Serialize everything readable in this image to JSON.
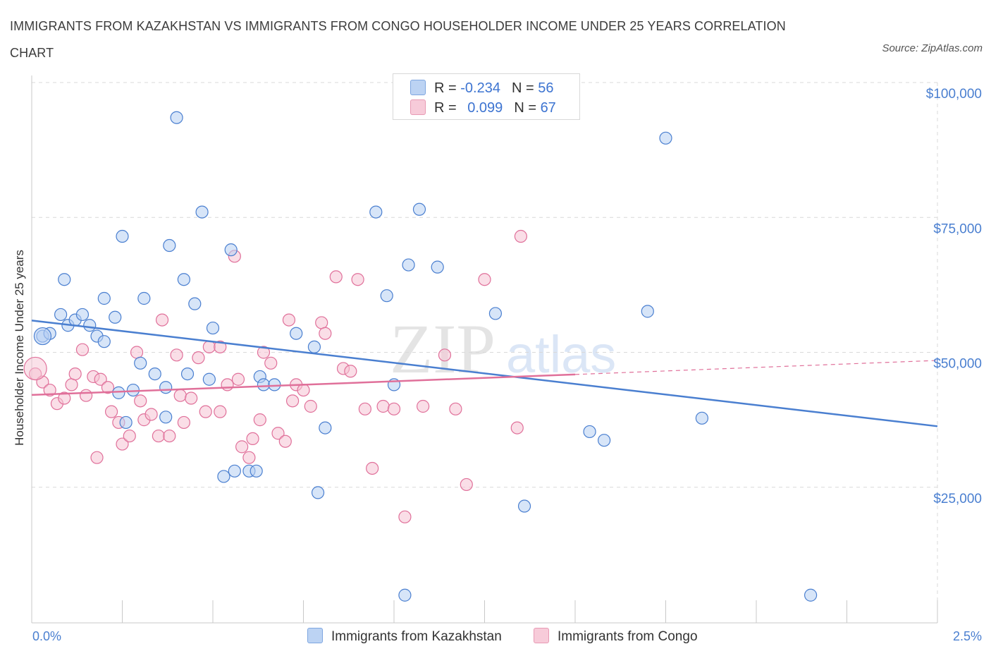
{
  "header": {
    "title": "IMMIGRANTS FROM KAZAKHSTAN VS IMMIGRANTS FROM CONGO HOUSEHOLDER INCOME UNDER 25 YEARS CORRELATION CHART",
    "source": "Source: ZipAtlas.com"
  },
  "legend": {
    "blue": {
      "r_label": "R =",
      "r_value": "-0.234",
      "n_label": "N =",
      "n_value": "56"
    },
    "pink": {
      "r_label": "R =",
      "r_value": "0.099",
      "n_label": "N =",
      "n_value": "67"
    }
  },
  "colors": {
    "blue": "#4a7fd0",
    "blue_fill": "#b7cff3",
    "pink": "#e0709a",
    "pink_fill": "#f6c3d3",
    "grid": "#d9d9d9"
  },
  "chart_data": {
    "type": "scatter",
    "title": "IMMIGRANTS FROM KAZAKHSTAN VS IMMIGRANTS FROM CONGO HOUSEHOLDER INCOME UNDER 25 YEARS CORRELATION CHART",
    "xlabel": "",
    "ylabel": "Householder Income Under 25 years",
    "x_tick_labels": [
      "0.0%",
      "2.5%"
    ],
    "y_ticks": [
      25000,
      50000,
      75000,
      100000
    ],
    "y_tick_labels": [
      "$25,000",
      "$50,000",
      "$75,000",
      "$100,000"
    ],
    "xlim": [
      0,
      2.5
    ],
    "ylim": [
      0,
      100000
    ],
    "grid": true,
    "legend_position": "top-center",
    "series": [
      {
        "name": "Immigrants from Kazakhstan",
        "color": "#4a7fd0",
        "r": -0.234,
        "n": 56,
        "trend": {
          "x": [
            0,
            2.5
          ],
          "y": [
            55900,
            36300
          ]
        },
        "points": [
          [
            0.03,
            53000
          ],
          [
            0.05,
            53500
          ],
          [
            0.08,
            57000
          ],
          [
            0.1,
            55000
          ],
          [
            0.12,
            56000
          ],
          [
            0.14,
            57000
          ],
          [
            0.16,
            55000
          ],
          [
            0.18,
            53000
          ],
          [
            0.2,
            52000
          ],
          [
            0.23,
            56500
          ],
          [
            0.09,
            63500
          ],
          [
            0.2,
            60000
          ],
          [
            0.25,
            71500
          ],
          [
            0.31,
            60000
          ],
          [
            0.38,
            69800
          ],
          [
            0.42,
            63500
          ],
          [
            0.45,
            59000
          ],
          [
            0.47,
            76000
          ],
          [
            0.5,
            54500
          ],
          [
            0.55,
            69000
          ],
          [
            0.3,
            48000
          ],
          [
            0.34,
            46000
          ],
          [
            0.37,
            43500
          ],
          [
            0.43,
            46000
          ],
          [
            0.49,
            45000
          ],
          [
            0.28,
            43000
          ],
          [
            0.26,
            37000
          ],
          [
            0.37,
            38000
          ],
          [
            0.53,
            27000
          ],
          [
            0.6,
            28000
          ],
          [
            0.62,
            28000
          ],
          [
            0.63,
            45500
          ],
          [
            0.64,
            44000
          ],
          [
            0.67,
            44000
          ],
          [
            0.73,
            53500
          ],
          [
            0.78,
            51000
          ],
          [
            0.81,
            36000
          ],
          [
            0.79,
            24000
          ],
          [
            0.95,
            76000
          ],
          [
            0.98,
            60500
          ],
          [
            1.0,
            44000
          ],
          [
            1.04,
            66200
          ],
          [
            1.07,
            76500
          ],
          [
            1.12,
            65800
          ],
          [
            1.28,
            57200
          ],
          [
            1.36,
            21500
          ],
          [
            1.54,
            35300
          ],
          [
            1.58,
            33700
          ],
          [
            1.7,
            57600
          ],
          [
            1.75,
            89700
          ],
          [
            1.85,
            37800
          ],
          [
            2.15,
            5000
          ],
          [
            1.03,
            5000
          ],
          [
            0.4,
            93500
          ],
          [
            0.56,
            28000
          ],
          [
            0.24,
            42500
          ]
        ]
      },
      {
        "name": "Immigrants from Congo",
        "color": "#e0709a",
        "r": 0.099,
        "n": 67,
        "trend": {
          "x": [
            0,
            1.5
          ],
          "y": [
            42100,
            45900
          ]
        },
        "trend_dashed": {
          "x": [
            1.5,
            2.5
          ],
          "y": [
            45900,
            48500
          ]
        },
        "points": [
          [
            0.01,
            46000
          ],
          [
            0.03,
            44500
          ],
          [
            0.05,
            43000
          ],
          [
            0.07,
            40500
          ],
          [
            0.09,
            41500
          ],
          [
            0.11,
            44000
          ],
          [
            0.12,
            46000
          ],
          [
            0.14,
            50500
          ],
          [
            0.15,
            42000
          ],
          [
            0.17,
            45500
          ],
          [
            0.19,
            45000
          ],
          [
            0.21,
            43500
          ],
          [
            0.22,
            39000
          ],
          [
            0.24,
            37000
          ],
          [
            0.25,
            33000
          ],
          [
            0.27,
            34500
          ],
          [
            0.29,
            50000
          ],
          [
            0.3,
            41000
          ],
          [
            0.31,
            37500
          ],
          [
            0.33,
            38500
          ],
          [
            0.35,
            34500
          ],
          [
            0.36,
            56000
          ],
          [
            0.38,
            34500
          ],
          [
            0.4,
            49500
          ],
          [
            0.41,
            42000
          ],
          [
            0.42,
            37000
          ],
          [
            0.44,
            41500
          ],
          [
            0.46,
            49000
          ],
          [
            0.48,
            39000
          ],
          [
            0.49,
            51000
          ],
          [
            0.52,
            39000
          ],
          [
            0.54,
            44000
          ],
          [
            0.56,
            67800
          ],
          [
            0.57,
            45000
          ],
          [
            0.58,
            32500
          ],
          [
            0.6,
            30500
          ],
          [
            0.61,
            34000
          ],
          [
            0.63,
            37500
          ],
          [
            0.64,
            50000
          ],
          [
            0.66,
            48000
          ],
          [
            0.68,
            35000
          ],
          [
            0.7,
            33500
          ],
          [
            0.72,
            41000
          ],
          [
            0.73,
            44000
          ],
          [
            0.75,
            43000
          ],
          [
            0.77,
            40000
          ],
          [
            0.8,
            55500
          ],
          [
            0.81,
            53500
          ],
          [
            0.84,
            64000
          ],
          [
            0.86,
            47000
          ],
          [
            0.88,
            46500
          ],
          [
            0.9,
            63500
          ],
          [
            0.92,
            39500
          ],
          [
            0.94,
            28500
          ],
          [
            0.97,
            40000
          ],
          [
            1.0,
            39500
          ],
          [
            1.03,
            19500
          ],
          [
            1.08,
            40000
          ],
          [
            1.14,
            49500
          ],
          [
            1.17,
            39500
          ],
          [
            1.2,
            25500
          ],
          [
            1.25,
            63500
          ],
          [
            1.34,
            36000
          ],
          [
            1.35,
            71500
          ],
          [
            0.18,
            30500
          ],
          [
            0.52,
            51000
          ],
          [
            0.71,
            56000
          ]
        ]
      }
    ]
  },
  "bottom_legend": {
    "blue_label": "Immigrants from Kazakhstan",
    "pink_label": "Immigrants from Congo"
  }
}
